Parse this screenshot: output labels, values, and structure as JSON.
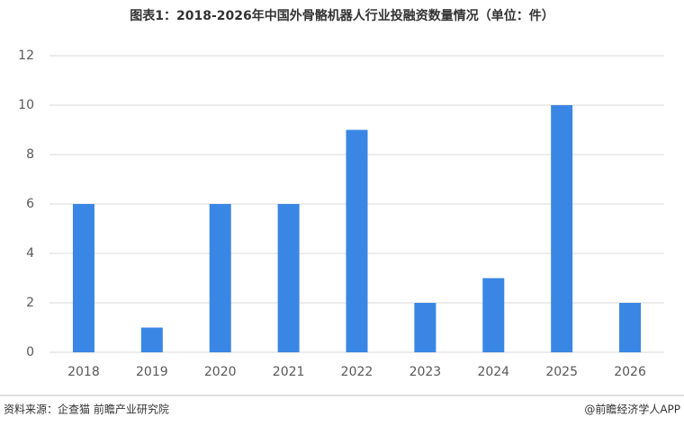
{
  "chart_data": {
    "type": "bar",
    "title": "图表1：2018-2026年中国外骨骼机器人行业投融资数量情况（单位：件）",
    "categories": [
      "2018",
      "2019",
      "2020",
      "2021",
      "2022",
      "2023",
      "2024",
      "2025",
      "2026"
    ],
    "values": [
      6,
      1,
      6,
      6,
      9,
      2,
      3,
      10,
      2
    ],
    "color": "#3a86e4",
    "ylim": [
      0,
      12
    ],
    "yticks": [
      0,
      2,
      4,
      6,
      8,
      10,
      12
    ],
    "grid": true,
    "source": "资料来源：企查猫 前瞻产业研究院",
    "credit": "@前瞻经济学人APP"
  }
}
